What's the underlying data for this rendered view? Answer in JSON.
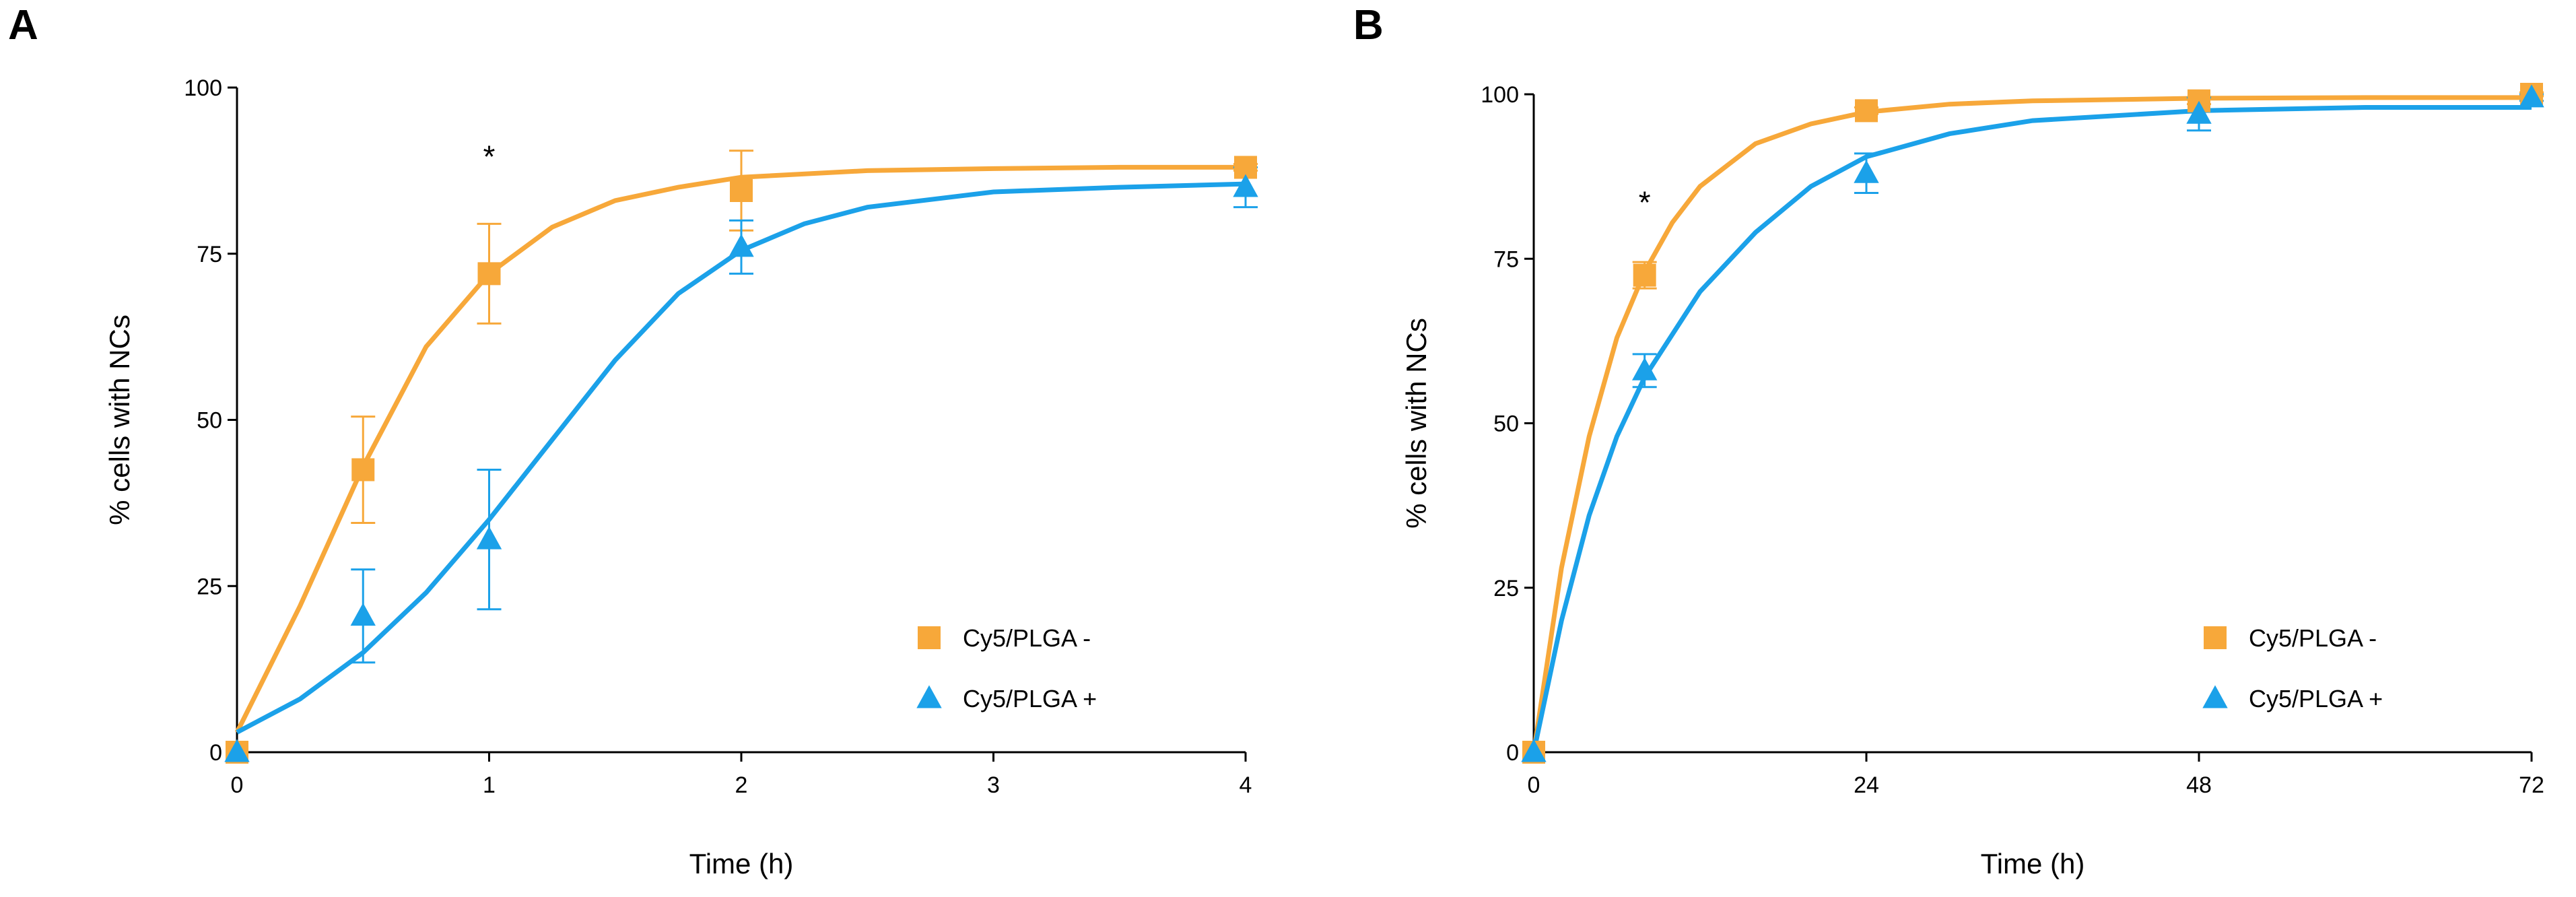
{
  "colors": {
    "orange": "#F7A83A",
    "blue": "#1BA1E9",
    "axis": "#000000"
  },
  "chart_data": [
    {
      "panel": "A",
      "type": "scatter",
      "xlabel": "Time (h)",
      "ylabel": "% cells with NCs",
      "xlim": [
        0,
        4
      ],
      "ylim": [
        0,
        100
      ],
      "xticks": [
        0,
        1,
        2,
        3,
        4
      ],
      "xtick_labels": [
        "0",
        "1",
        "2",
        "3",
        "4"
      ],
      "yticks": [
        0,
        25,
        50,
        75,
        100
      ],
      "ytick_labels": [
        "0",
        "25",
        "50",
        "75",
        "100"
      ],
      "grid": false,
      "legend_position": "bottom-right",
      "annotations": [
        {
          "text": "*",
          "x": 1,
          "y": 90
        }
      ],
      "series": [
        {
          "name": "Cy5/PLGA -",
          "color": "#F7A83A",
          "marker": "square",
          "points": [
            {
              "x": 0,
              "y": 0,
              "err": 0
            },
            {
              "x": 0.5,
              "y": 42.5,
              "err": 8
            },
            {
              "x": 1,
              "y": 72,
              "err": 7.5
            },
            {
              "x": 2,
              "y": 84.5,
              "err": 6
            },
            {
              "x": 4,
              "y": 88,
              "err": 0.5
            }
          ],
          "fit": {
            "x": [
              0,
              0.25,
              0.5,
              0.75,
              1,
              1.25,
              1.5,
              1.75,
              2,
              2.5,
              3,
              3.5,
              4
            ],
            "y": [
              3,
              22,
              43,
              61,
              72,
              79,
              83,
              85,
              86.5,
              87.5,
              87.8,
              88,
              88
            ]
          }
        },
        {
          "name": "Cy5/PLGA +",
          "color": "#1BA1E9",
          "marker": "triangle",
          "points": [
            {
              "x": 0,
              "y": 0,
              "err": 0
            },
            {
              "x": 0.5,
              "y": 20.5,
              "err": 7
            },
            {
              "x": 1,
              "y": 32,
              "err": 10.5
            },
            {
              "x": 2,
              "y": 76,
              "err": 4
            },
            {
              "x": 4,
              "y": 85,
              "err": 3
            }
          ],
          "fit": {
            "x": [
              0,
              0.25,
              0.5,
              0.75,
              1,
              1.25,
              1.5,
              1.75,
              2,
              2.25,
              2.5,
              3,
              3.5,
              4
            ],
            "y": [
              3,
              8,
              15,
              24,
              35,
              47,
              59,
              69,
              75.5,
              79.5,
              82,
              84.3,
              85,
              85.5
            ]
          }
        }
      ]
    },
    {
      "panel": "B",
      "type": "scatter",
      "xlabel": "Time (h)",
      "ylabel": "% cells with NCs",
      "xlim": [
        0,
        72
      ],
      "ylim": [
        0,
        100
      ],
      "xticks": [
        0,
        24,
        48,
        72
      ],
      "xtick_labels": [
        "0",
        "24",
        "48",
        "72"
      ],
      "yticks": [
        0,
        25,
        50,
        75,
        100
      ],
      "ytick_labels": [
        "0",
        "25",
        "50",
        "75",
        "100"
      ],
      "grid": false,
      "legend_position": "bottom-right",
      "annotations": [
        {
          "text": "*",
          "x": 8,
          "y": 84
        }
      ],
      "series": [
        {
          "name": "Cy5/PLGA -",
          "color": "#F7A83A",
          "marker": "square",
          "points": [
            {
              "x": 0,
              "y": 0,
              "err": 0
            },
            {
              "x": 8,
              "y": 72.5,
              "err": 2
            },
            {
              "x": 24,
              "y": 97.5,
              "err": 0.5
            },
            {
              "x": 48,
              "y": 99,
              "err": 0.5
            },
            {
              "x": 72,
              "y": 100,
              "err": 0.3
            }
          ],
          "fit": {
            "x": [
              0,
              2,
              4,
              6,
              8,
              10,
              12,
              16,
              20,
              24,
              30,
              36,
              48,
              60,
              72
            ],
            "y": [
              0,
              28,
              48,
              63,
              73,
              80.5,
              86,
              92.5,
              95.5,
              97.3,
              98.5,
              99,
              99.4,
              99.5,
              99.5
            ]
          }
        },
        {
          "name": "Cy5/PLGA +",
          "color": "#1BA1E9",
          "marker": "triangle",
          "points": [
            {
              "x": 0,
              "y": 0,
              "err": 0
            },
            {
              "x": 8,
              "y": 58,
              "err": 2.5
            },
            {
              "x": 24,
              "y": 88,
              "err": 3
            },
            {
              "x": 48,
              "y": 97,
              "err": 2.5
            },
            {
              "x": 72,
              "y": 99.5,
              "err": 0.5
            }
          ],
          "fit": {
            "x": [
              0,
              2,
              4,
              6,
              8,
              12,
              16,
              20,
              24,
              30,
              36,
              48,
              60,
              72
            ],
            "y": [
              0,
              20,
              36,
              48,
              57,
              70,
              79,
              86,
              90.5,
              94,
              96,
              97.5,
              98,
              98
            ]
          }
        }
      ]
    }
  ]
}
